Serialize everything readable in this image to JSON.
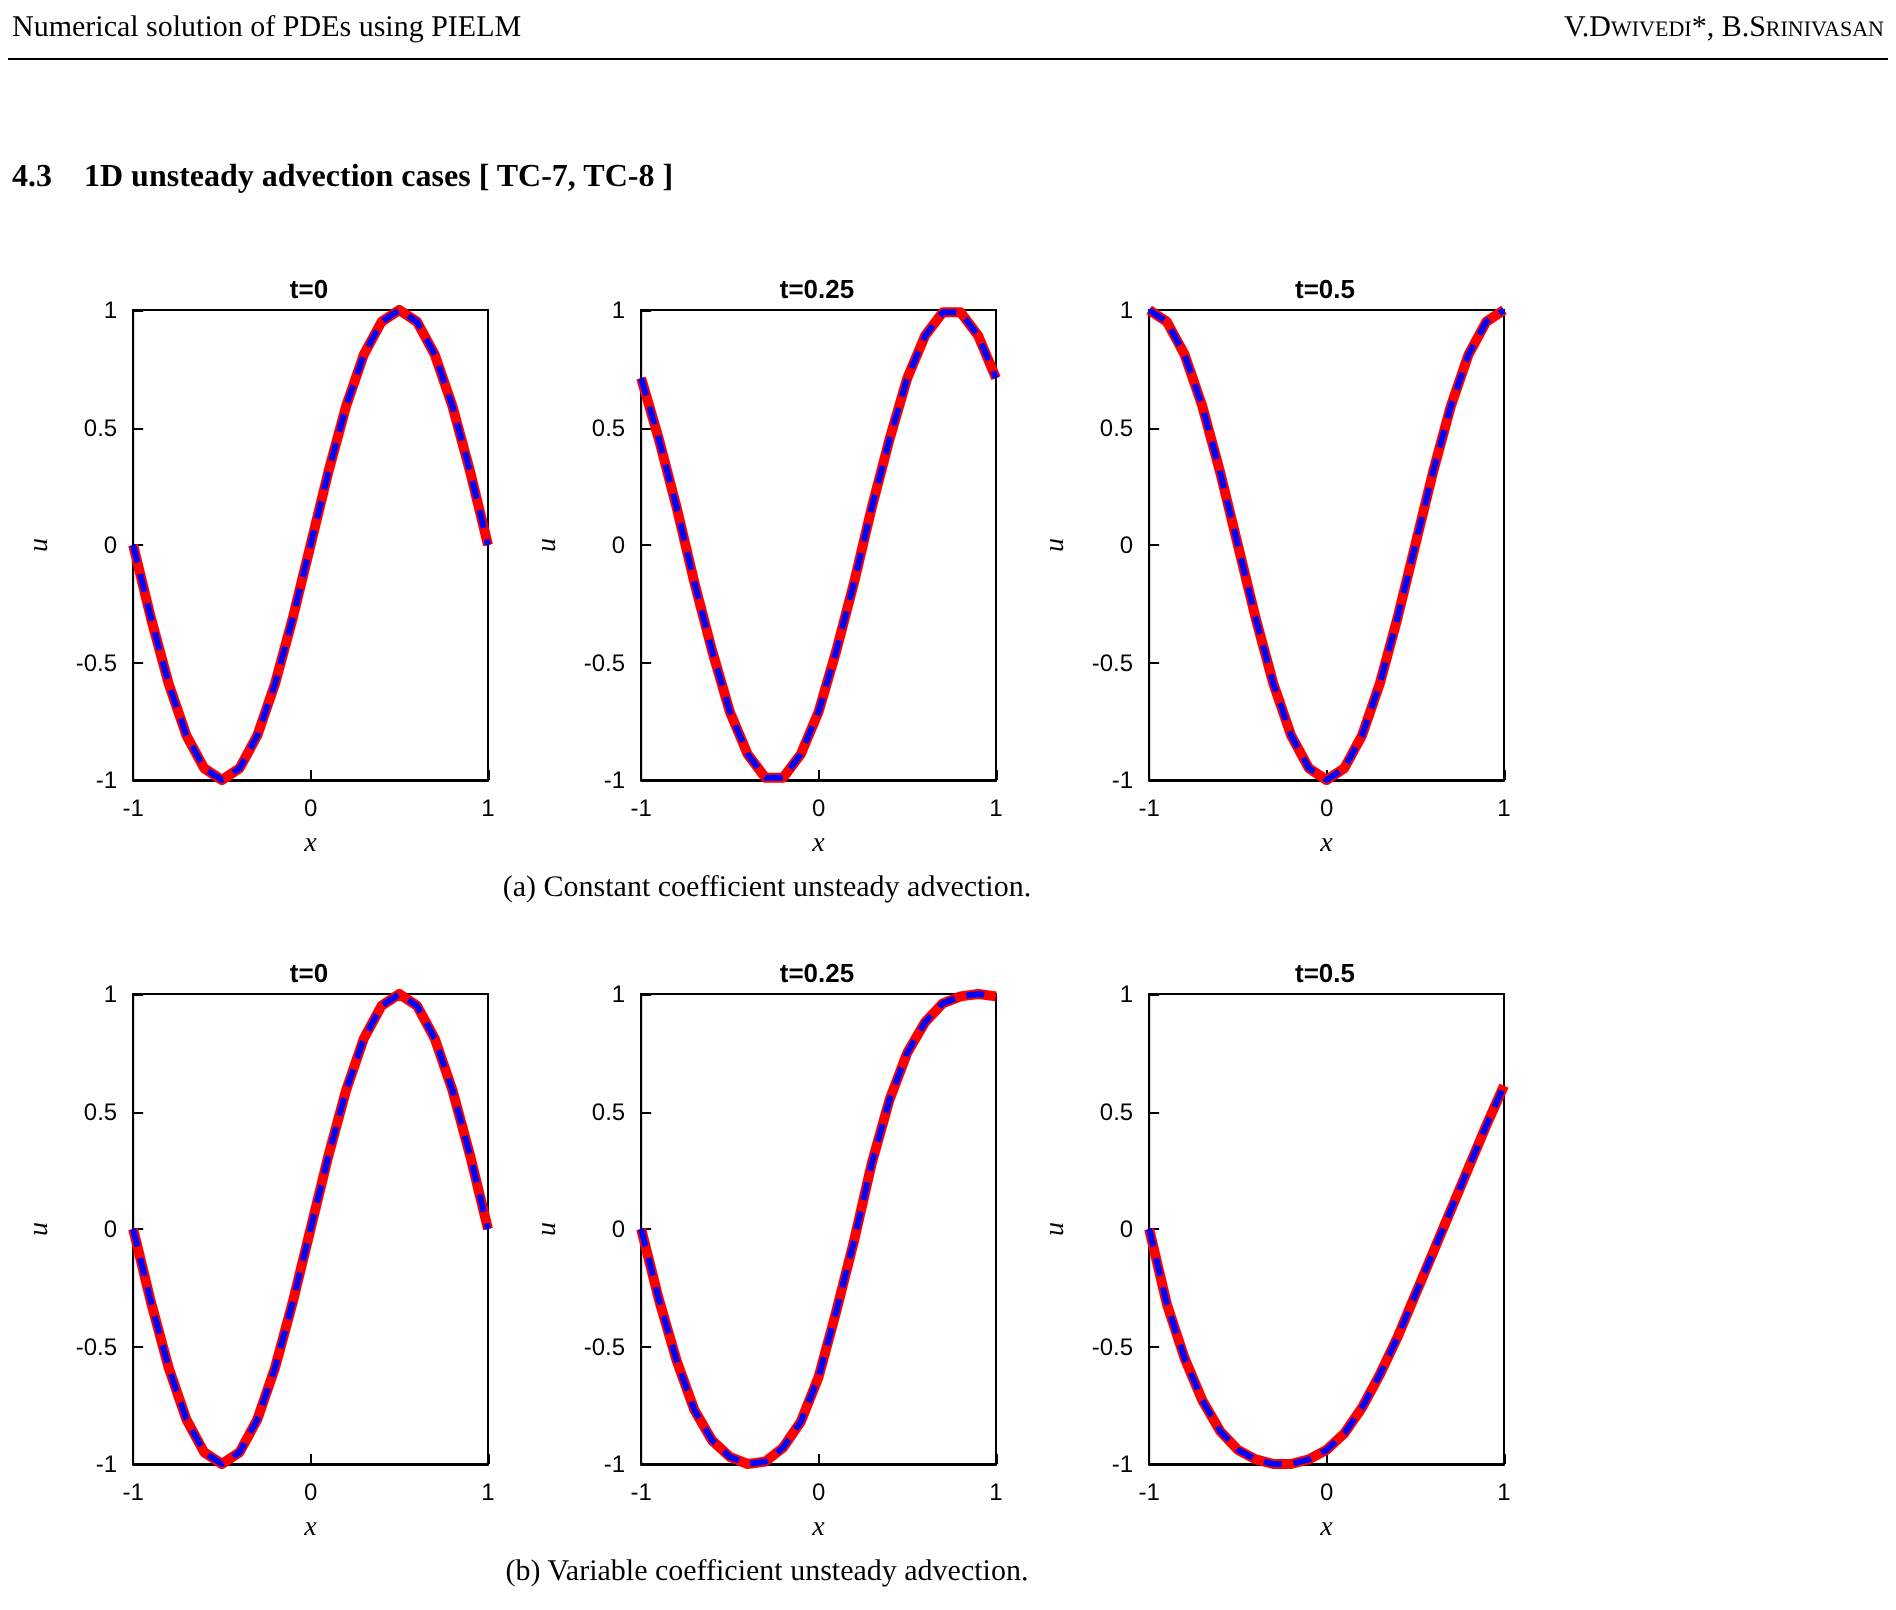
{
  "chart_data": [
    {
      "type": "line",
      "title": "t=0",
      "xlabel": "x",
      "ylabel": "u",
      "xlim": [
        -1,
        1
      ],
      "xticks": [
        -1,
        0,
        1
      ],
      "ylim": [
        -1,
        1
      ],
      "yticks": [
        -1,
        -0.5,
        0,
        0.5,
        1
      ],
      "grid": false,
      "annotations": [
        "Numerical solution of PDEs using PIELM",
        "V.Dwivedi*, B.Srinivasan",
        "4.3    1D unsteady advection cases [ TC-7, TC-8 ]"
      ],
      "x": [
        -1,
        -0.9,
        -0.8,
        -0.7,
        -0.6,
        -0.5,
        -0.4,
        -0.3,
        -0.2,
        -0.1,
        0,
        0.1,
        0.2,
        0.3,
        0.4,
        0.5,
        0.6,
        0.7,
        0.8,
        0.9,
        1
      ],
      "series": [
        {
          "color": "#ff0000",
          "line_style": "solid",
          "values": [
            0,
            -0.31,
            -0.59,
            -0.81,
            -0.95,
            -1,
            -0.95,
            -0.81,
            -0.59,
            -0.31,
            0,
            0.31,
            0.59,
            0.81,
            0.95,
            1,
            0.95,
            0.81,
            0.59,
            0.31,
            0
          ]
        },
        {
          "color": "#0000ff",
          "line_style": "dashed",
          "values": [
            0,
            -0.31,
            -0.59,
            -0.81,
            -0.95,
            -1,
            -0.95,
            -0.81,
            -0.59,
            -0.31,
            0,
            0.31,
            0.59,
            0.81,
            0.95,
            1,
            0.95,
            0.81,
            0.59,
            0.31,
            0
          ]
        }
      ]
    },
    {
      "type": "line",
      "title": "t=0.25",
      "xlabel": "x",
      "ylabel": "u",
      "xlim": [
        -1,
        1
      ],
      "xticks": [
        -1,
        0,
        1
      ],
      "ylim": [
        -1,
        1
      ],
      "yticks": [
        -1,
        -0.5,
        0,
        0.5,
        1
      ],
      "grid": false,
      "annotations": [
        "(a) Constant coefficient unsteady advection."
      ],
      "x": [
        -1,
        -0.9,
        -0.8,
        -0.7,
        -0.6,
        -0.5,
        -0.4,
        -0.3,
        -0.2,
        -0.1,
        0,
        0.1,
        0.2,
        0.3,
        0.4,
        0.5,
        0.6,
        0.7,
        0.8,
        0.9,
        1
      ],
      "series": [
        {
          "color": "#ff0000",
          "line_style": "solid",
          "values": [
            0.71,
            0.45,
            0.16,
            -0.16,
            -0.45,
            -0.71,
            -0.89,
            -0.99,
            -0.99,
            -0.89,
            -0.71,
            -0.45,
            -0.16,
            0.16,
            0.45,
            0.71,
            0.89,
            0.99,
            0.99,
            0.89,
            0.71
          ]
        },
        {
          "color": "#0000ff",
          "line_style": "dashed",
          "values": [
            0.71,
            0.45,
            0.16,
            -0.16,
            -0.45,
            -0.71,
            -0.89,
            -0.99,
            -0.99,
            -0.89,
            -0.71,
            -0.45,
            -0.16,
            0.16,
            0.45,
            0.71,
            0.89,
            0.99,
            0.99,
            0.89,
            0.71
          ]
        }
      ]
    },
    {
      "type": "line",
      "title": "t=0.5",
      "xlabel": "x",
      "ylabel": "u",
      "xlim": [
        -1,
        1
      ],
      "xticks": [
        -1,
        0,
        1
      ],
      "ylim": [
        -1,
        1
      ],
      "yticks": [
        -1,
        -0.5,
        0,
        0.5,
        1
      ],
      "grid": false,
      "x": [
        -1,
        -0.9,
        -0.8,
        -0.7,
        -0.6,
        -0.5,
        -0.4,
        -0.3,
        -0.2,
        -0.1,
        0,
        0.1,
        0.2,
        0.3,
        0.4,
        0.5,
        0.6,
        0.7,
        0.8,
        0.9,
        1
      ],
      "series": [
        {
          "color": "#ff0000",
          "line_style": "solid",
          "values": [
            1,
            0.95,
            0.81,
            0.59,
            0.31,
            0,
            -0.31,
            -0.59,
            -0.81,
            -0.95,
            -1,
            -0.95,
            -0.81,
            -0.59,
            -0.31,
            0,
            0.31,
            0.59,
            0.81,
            0.95,
            1
          ]
        },
        {
          "color": "#0000ff",
          "line_style": "dashed",
          "values": [
            1,
            0.95,
            0.81,
            0.59,
            0.31,
            0,
            -0.31,
            -0.59,
            -0.81,
            -0.95,
            -1,
            -0.95,
            -0.81,
            -0.59,
            -0.31,
            0,
            0.31,
            0.59,
            0.81,
            0.95,
            1
          ]
        }
      ]
    },
    {
      "type": "line",
      "title": "t=0",
      "xlabel": "x",
      "ylabel": "u",
      "xlim": [
        -1,
        1
      ],
      "xticks": [
        -1,
        0,
        1
      ],
      "ylim": [
        -1,
        1
      ],
      "yticks": [
        -1,
        -0.5,
        0,
        0.5,
        1
      ],
      "grid": false,
      "x": [
        -1,
        -0.9,
        -0.8,
        -0.7,
        -0.6,
        -0.5,
        -0.4,
        -0.3,
        -0.2,
        -0.1,
        0,
        0.1,
        0.2,
        0.3,
        0.4,
        0.5,
        0.6,
        0.7,
        0.8,
        0.9,
        1
      ],
      "series": [
        {
          "color": "#ff0000",
          "line_style": "solid",
          "values": [
            0,
            -0.31,
            -0.59,
            -0.81,
            -0.95,
            -1,
            -0.95,
            -0.81,
            -0.59,
            -0.31,
            0,
            0.31,
            0.59,
            0.81,
            0.95,
            1,
            0.95,
            0.81,
            0.59,
            0.31,
            0
          ]
        },
        {
          "color": "#0000ff",
          "line_style": "dashed",
          "values": [
            0,
            -0.31,
            -0.59,
            -0.81,
            -0.95,
            -1,
            -0.95,
            -0.81,
            -0.59,
            -0.31,
            0,
            0.31,
            0.59,
            0.81,
            0.95,
            1,
            0.95,
            0.81,
            0.59,
            0.31,
            0
          ]
        }
      ]
    },
    {
      "type": "line",
      "title": "t=0.25",
      "xlabel": "x",
      "ylabel": "u",
      "xlim": [
        -1,
        1
      ],
      "xticks": [
        -1,
        0,
        1
      ],
      "ylim": [
        -1,
        1
      ],
      "yticks": [
        -1,
        -0.5,
        0,
        0.5,
        1
      ],
      "grid": false,
      "annotations": [
        "(b) Variable coefficient unsteady advection."
      ],
      "x": [
        -1,
        -0.9,
        -0.8,
        -0.7,
        -0.6,
        -0.5,
        -0.4,
        -0.3,
        -0.2,
        -0.1,
        0,
        0.1,
        0.2,
        0.3,
        0.4,
        0.5,
        0.6,
        0.7,
        0.8,
        0.9,
        1
      ],
      "series": [
        {
          "color": "#ff0000",
          "line_style": "solid",
          "values": [
            0,
            -0.3,
            -0.56,
            -0.77,
            -0.9,
            -0.97,
            -1,
            -0.99,
            -0.93,
            -0.82,
            -0.63,
            -0.35,
            -0.05,
            0.28,
            0.55,
            0.75,
            0.88,
            0.96,
            0.99,
            1,
            0.99
          ]
        },
        {
          "color": "#0000ff",
          "line_style": "dashed",
          "values": [
            0,
            -0.3,
            -0.56,
            -0.77,
            -0.9,
            -0.97,
            -1,
            -0.99,
            -0.93,
            -0.82,
            -0.63,
            -0.35,
            -0.05,
            0.28,
            0.55,
            0.75,
            0.88,
            0.96,
            0.99,
            1,
            0.99
          ]
        }
      ]
    },
    {
      "type": "line",
      "title": "t=0.5",
      "xlabel": "x",
      "ylabel": "u",
      "xlim": [
        -1,
        1
      ],
      "xticks": [
        -1,
        0,
        1
      ],
      "ylim": [
        -1,
        1
      ],
      "yticks": [
        -1,
        -0.5,
        0,
        0.5,
        1
      ],
      "grid": false,
      "x": [
        -1,
        -0.9,
        -0.8,
        -0.7,
        -0.6,
        -0.5,
        -0.4,
        -0.3,
        -0.2,
        -0.1,
        0,
        0.1,
        0.2,
        0.3,
        0.4,
        0.5,
        0.6,
        0.7,
        0.8,
        0.9,
        1
      ],
      "series": [
        {
          "color": "#ff0000",
          "line_style": "solid",
          "values": [
            0,
            -0.32,
            -0.55,
            -0.73,
            -0.86,
            -0.94,
            -0.98,
            -1,
            -1,
            -0.98,
            -0.94,
            -0.87,
            -0.76,
            -0.62,
            -0.46,
            -0.28,
            -0.1,
            0.08,
            0.26,
            0.44,
            0.61
          ]
        },
        {
          "color": "#0000ff",
          "line_style": "dashed",
          "values": [
            0,
            -0.32,
            -0.55,
            -0.73,
            -0.86,
            -0.94,
            -0.98,
            -1,
            -1,
            -0.98,
            -0.94,
            -0.87,
            -0.76,
            -0.62,
            -0.46,
            -0.28,
            -0.1,
            0.08,
            0.26,
            0.44,
            0.61
          ]
        }
      ]
    }
  ]
}
